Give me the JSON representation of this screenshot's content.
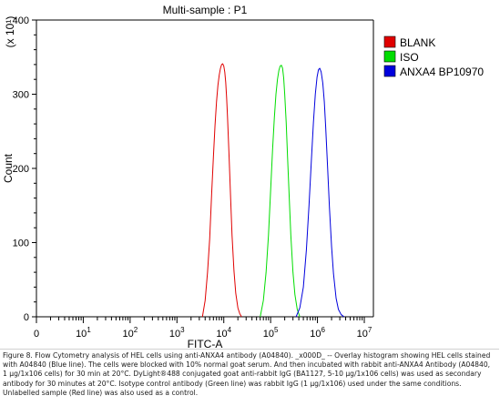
{
  "chart_data": {
    "type": "line",
    "title": "Multi-sample : P1",
    "xlabel": "FITC-A",
    "ylabel": "Count",
    "y_multiplier": "(x 10¹)",
    "xscale": "log",
    "xlim": [
      1,
      10000000
    ],
    "ylim": [
      0,
      400
    ],
    "x_ticks": [
      {
        "value": 1,
        "base": "0",
        "exp": ""
      },
      {
        "value": 10,
        "base": "10",
        "exp": "1"
      },
      {
        "value": 100,
        "base": "10",
        "exp": "2"
      },
      {
        "value": 1000,
        "base": "10",
        "exp": "3"
      },
      {
        "value": 10000,
        "base": "10",
        "exp": "4"
      },
      {
        "value": 100000,
        "base": "10",
        "exp": "5"
      },
      {
        "value": 1000000,
        "base": "10",
        "exp": "6"
      },
      {
        "value": 10000000,
        "base": "10",
        "exp": "7"
      }
    ],
    "y_ticks": [
      0,
      100,
      200,
      300,
      400
    ],
    "legend_position": "right",
    "series": [
      {
        "name": "BLANK",
        "color": "#e00000",
        "x": [
          3500,
          4000,
          4500,
          5000,
          5500,
          6000,
          6500,
          7000,
          7500,
          8000,
          8500,
          9000,
          9500,
          10000,
          10500,
          11000,
          11500,
          12000,
          13000,
          14000,
          15000,
          16500,
          18000,
          20000,
          22000,
          24000
        ],
        "y": [
          0,
          22,
          60,
          105,
          165,
          215,
          258,
          290,
          312,
          326,
          335,
          340,
          341,
          338,
          330,
          316,
          295,
          270,
          215,
          160,
          110,
          62,
          32,
          12,
          4,
          0
        ]
      },
      {
        "name": "ISO",
        "color": "#00dd00",
        "x": [
          60000,
          70000,
          80000,
          90000,
          100000,
          110000,
          120000,
          130000,
          140000,
          150000,
          160000,
          170000,
          180000,
          190000,
          200000,
          215000,
          230000,
          250000,
          270000,
          300000,
          330000,
          370000,
          420000
        ],
        "y": [
          0,
          22,
          60,
          110,
          170,
          225,
          268,
          300,
          320,
          332,
          338,
          339,
          335,
          322,
          300,
          262,
          215,
          160,
          110,
          60,
          30,
          10,
          0
        ]
      },
      {
        "name": "ANXA4 BP10970",
        "color": "#0000dd",
        "x": [
          350000,
          420000,
          500000,
          580000,
          660000,
          740000,
          820000,
          900000,
          980000,
          1050000,
          1120000,
          1200000,
          1300000,
          1400000,
          1500000,
          1650000,
          1800000,
          2000000,
          2200000,
          2500000,
          2800000,
          3200000,
          3700000
        ],
        "y": [
          0,
          12,
          40,
          90,
          150,
          210,
          262,
          300,
          323,
          333,
          335,
          330,
          315,
          290,
          255,
          200,
          148,
          95,
          58,
          25,
          10,
          3,
          0
        ]
      }
    ]
  },
  "caption": "Figure 8. Flow Cytometry analysis of HEL cells using anti-ANXA4 antibody (A04840). _x000D_ -- Overlay histogram showing HEL cells stained with A04840 (Blue line). The cells were blocked with 10% normal goat serum. And then incubated with rabbit anti-ANXA4 Antibody (A04840, 1 µg/1x106 cells) for 30 min at 20°C. DyLight®488 conjugated goat anti-rabbit IgG (BA1127, 5-10 µg/1x106 cells) was used as secondary antibody for 30 minutes at 20°C. Isotype control antibody (Green line) was rabbit IgG (1 µg/1x106) used under the same conditions. Unlabelled sample (Red line) was also used as a control."
}
